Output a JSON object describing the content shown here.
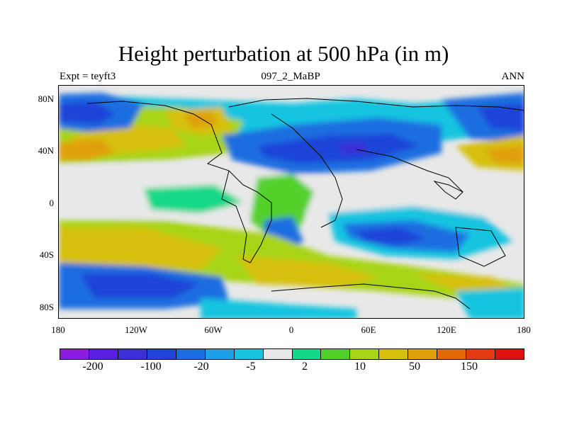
{
  "title": "Height perturbation at 500 hPa (in m)",
  "subtitle_left": "Expt = teyft3",
  "subtitle_center": "097_2_MaBP",
  "subtitle_right": "ANN",
  "lat_labels": [
    "80N",
    "40N",
    "0",
    "40S",
    "80S"
  ],
  "lon_labels": [
    "180",
    "120W",
    "60W",
    "0",
    "60E",
    "120E",
    "180"
  ],
  "colorbar": {
    "colors": [
      "#8c1be0",
      "#5a1ee0",
      "#3a2fd6",
      "#1f45d8",
      "#1a6ee0",
      "#1ea0e6",
      "#16c4e0",
      "#e8e8e8",
      "#12d88a",
      "#52d02a",
      "#a8d418",
      "#d6c00c",
      "#e0a00a",
      "#e06a08",
      "#e43a12",
      "#e0100e"
    ],
    "labels": [
      "-200",
      "-100",
      "-20",
      "-5",
      "2",
      "10",
      "50",
      "150"
    ]
  }
}
